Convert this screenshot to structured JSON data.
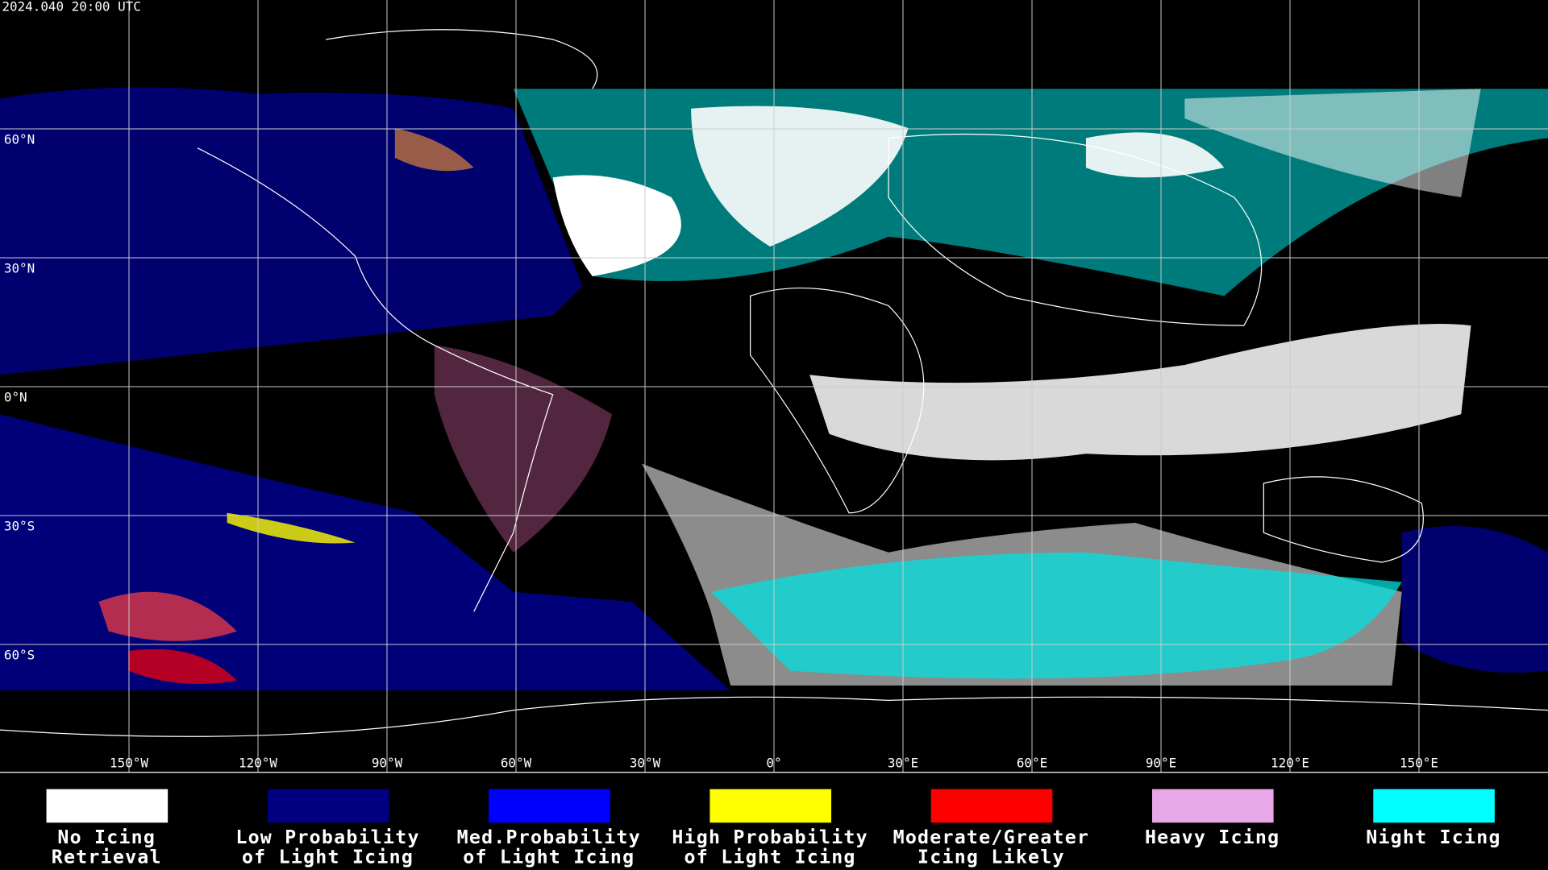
{
  "header": {
    "timestamp": "2024.040 20:00 UTC"
  },
  "map": {
    "lat_labels": [
      "60°N",
      "30°N",
      "0°N",
      "30°S",
      "60°S"
    ],
    "lon_labels": [
      "150°W",
      "120°W",
      "90°W",
      "60°W",
      "30°W",
      "0°",
      "30°E",
      "60°E",
      "90°E",
      "120°E",
      "150°E"
    ]
  },
  "legend": {
    "items": [
      {
        "lines": [
          "No Icing",
          "Retrieval"
        ],
        "color": "#ffffff"
      },
      {
        "lines": [
          "Low Probability",
          "of Light Icing"
        ],
        "color": "#000080"
      },
      {
        "lines": [
          "Med.Probability",
          "of Light Icing"
        ],
        "color": "#0000ff"
      },
      {
        "lines": [
          "High Probability",
          "of Light Icing"
        ],
        "color": "#ffff00"
      },
      {
        "lines": [
          "Moderate/Greater",
          "Icing Likely"
        ],
        "color": "#ff0000"
      },
      {
        "lines": [
          "Heavy Icing"
        ],
        "color": "#e6a8e6"
      },
      {
        "lines": [
          "Night Icing"
        ],
        "color": "#00ffff"
      }
    ]
  }
}
